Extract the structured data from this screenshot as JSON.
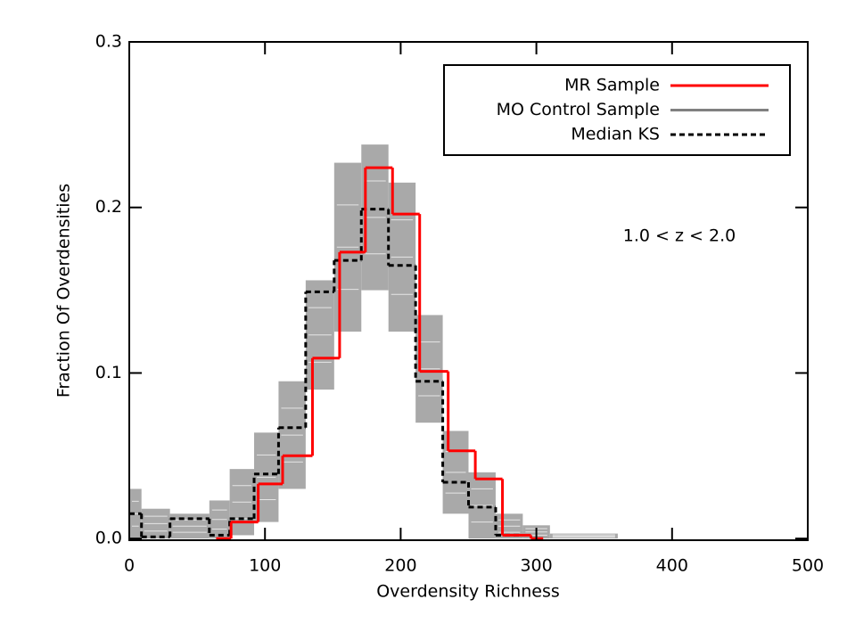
{
  "chart_data": {
    "type": "histogram",
    "xlabel": "Overdensity Richness",
    "ylabel": "Fraction Of Overdensities",
    "annotation": "1.0 < z < 2.0",
    "xlim": [
      0,
      500
    ],
    "ylim": [
      -0.001,
      0.3
    ],
    "xticks": [
      0,
      100,
      200,
      300,
      400,
      500
    ],
    "yticks": [
      {
        "value": 0,
        "label": "0.0"
      },
      {
        "value": 0.1,
        "label": "0.1"
      },
      {
        "value": 0.2,
        "label": "0.2"
      },
      {
        "value": 0.3,
        "label": "0.3"
      }
    ],
    "legend": "upper right",
    "series": [
      {
        "name": "MO Control Sample",
        "color": "#a9a9a9",
        "legend_color": "#808080",
        "linestyle": "band",
        "bins": [
          0,
          9,
          30,
          59,
          74,
          92,
          110,
          130,
          151,
          171,
          191,
          211,
          231,
          250,
          270,
          290,
          310,
          360
        ],
        "low": [
          0,
          0,
          0,
          0,
          0.002,
          0.01,
          0.03,
          0.09,
          0.125,
          0.15,
          0.125,
          0.07,
          0.015,
          0,
          0,
          0,
          0
        ],
        "values": [
          0.03,
          0.018,
          0.015,
          0.023,
          0.042,
          0.064,
          0.095,
          0.156,
          0.227,
          0.238,
          0.215,
          0.135,
          0.065,
          0.04,
          0.015,
          0.008,
          0.003
        ]
      },
      {
        "name": "Median KS",
        "color": "#000000",
        "linestyle": "dashed",
        "bins": [
          0,
          9,
          30,
          59,
          74,
          92,
          110,
          130,
          151,
          171,
          191,
          211,
          231,
          250,
          270,
          290
        ],
        "values": [
          0.015,
          0.001,
          0.012,
          0.002,
          0.012,
          0.039,
          0.067,
          0.149,
          0.168,
          0.199,
          0.165,
          0.095,
          0.034,
          0.019,
          0.002
        ]
      },
      {
        "name": "MR Sample",
        "color": "#ff0000",
        "linestyle": "solid",
        "bins": [
          64,
          75,
          95,
          113,
          135,
          155,
          174,
          194,
          214,
          235,
          255,
          275,
          296,
          305
        ],
        "values": [
          0,
          0.01,
          0.033,
          0.05,
          0.109,
          0.173,
          0.224,
          0.196,
          0.101,
          0.053,
          0.036,
          0.002,
          0
        ]
      }
    ]
  }
}
